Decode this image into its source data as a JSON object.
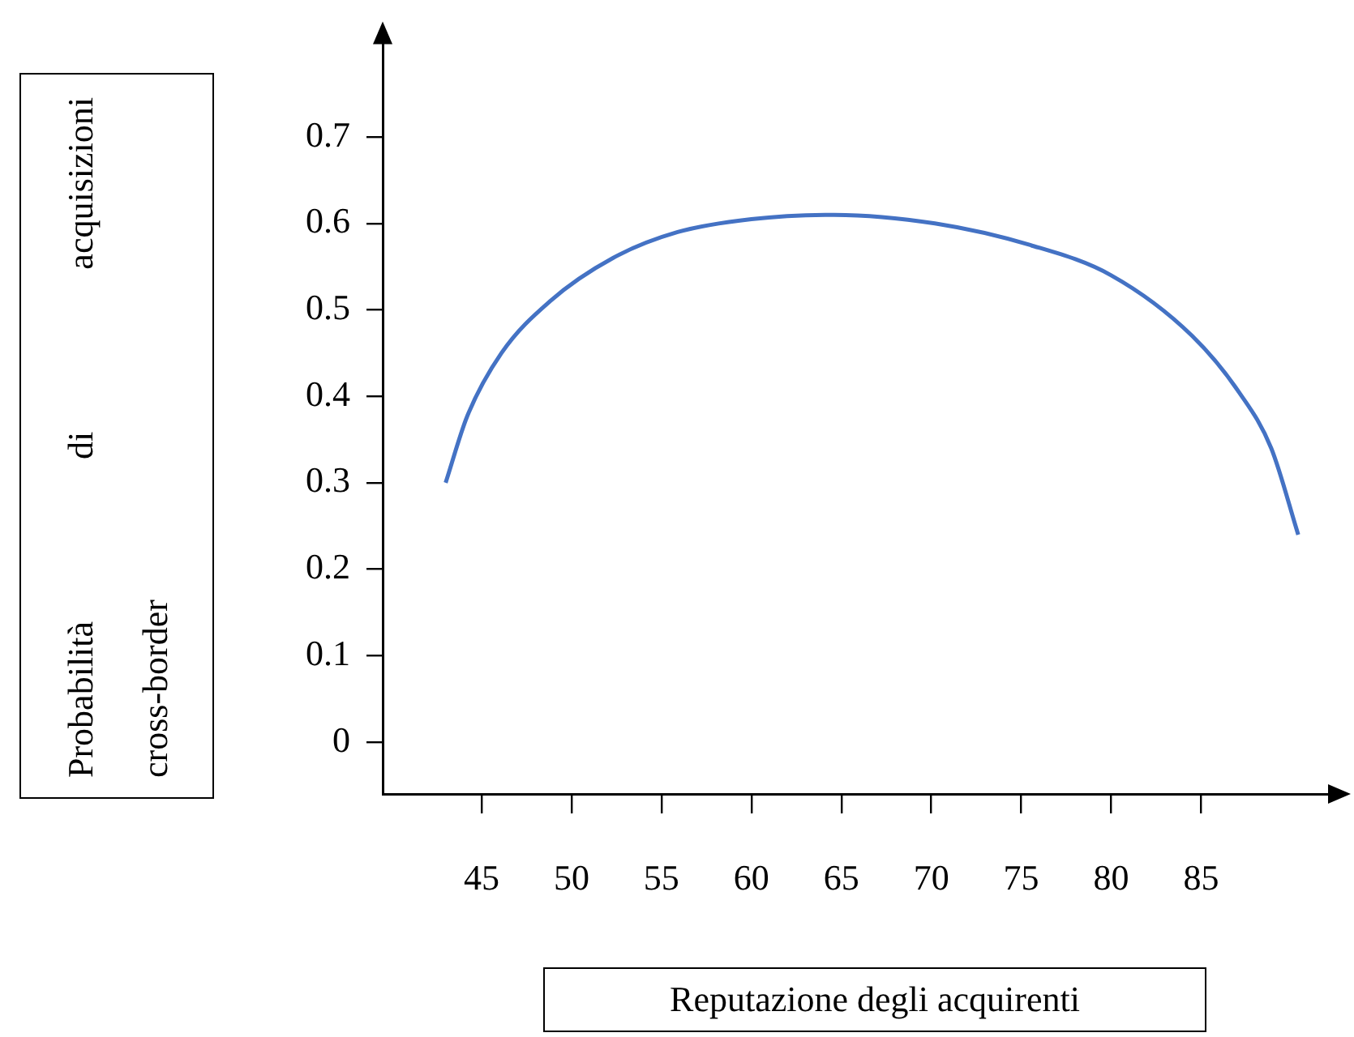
{
  "chart_data": {
    "type": "line",
    "xlabel": "Reputazione degli acquirenti",
    "ylabel": "Probabilità di acquisizioni cross-border",
    "xlim": [
      39.5,
      92.6
    ],
    "xticks": [
      45,
      50,
      55,
      60,
      65,
      70,
      75,
      80,
      85
    ],
    "ylim": [
      -0.06,
      0.815
    ],
    "yticks": [
      0,
      0.1,
      0.2,
      0.3,
      0.4,
      0.5,
      0.6,
      0.7
    ],
    "marker": "none",
    "legend": false,
    "series": [
      {
        "color": "#4472c4",
        "x": [
          43.0,
          44.2,
          46.1,
          48.8,
          52.3,
          55.9,
          60.0,
          64.6,
          70.2,
          75.5,
          80.0,
          84.5,
          87.1,
          88.9,
          90.4
        ],
        "values": [
          0.3,
          0.377,
          0.45,
          0.51,
          0.56,
          0.59,
          0.605,
          0.61,
          0.6,
          0.575,
          0.54,
          0.47,
          0.405,
          0.34,
          0.24
        ]
      }
    ]
  }
}
